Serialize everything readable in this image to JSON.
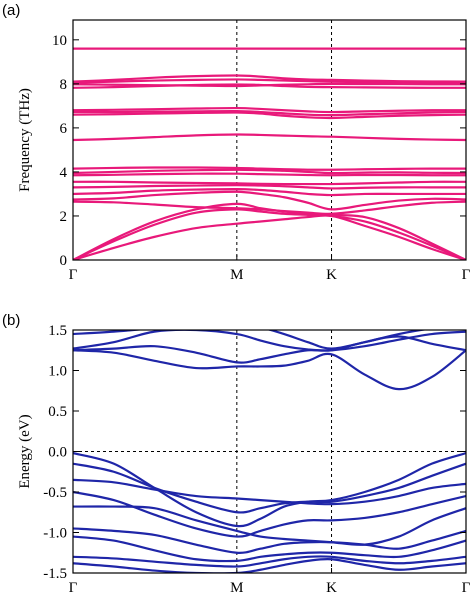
{
  "chart_data": [
    {
      "type": "line",
      "panel_label": "(a)",
      "title": "",
      "xlabel": "",
      "ylabel": "Frequency (THz)",
      "ylim": [
        0,
        10.9
      ],
      "yticks": [
        0,
        2,
        4,
        6,
        8,
        10
      ],
      "ytick_labels": [
        "0",
        "2",
        "4",
        "6",
        "8",
        "10"
      ],
      "xlim": [
        0,
        4.15
      ],
      "kpoints": [
        {
          "label": "Γ",
          "x": 0
        },
        {
          "label": "M",
          "x": 1.73
        },
        {
          "label": "K",
          "x": 2.73
        },
        {
          "label": "Γ",
          "x": 4.15
        }
      ],
      "hlines": [],
      "color": "#e8197a",
      "x": [
        0,
        0.43,
        0.86,
        1.3,
        1.73,
        1.98,
        2.23,
        2.48,
        2.73,
        3.08,
        3.44,
        3.79,
        4.15
      ],
      "series": [
        {
          "values": [
            0,
            0.55,
            1.05,
            1.45,
            1.65,
            1.75,
            1.85,
            1.95,
            2.0,
            1.55,
            1.05,
            0.5,
            0
          ]
        },
        {
          "values": [
            0,
            0.85,
            1.6,
            2.15,
            2.3,
            2.2,
            2.1,
            2.05,
            2.0,
            1.75,
            1.25,
            0.65,
            0
          ]
        },
        {
          "values": [
            0,
            0.95,
            1.75,
            2.3,
            2.55,
            2.35,
            2.2,
            2.1,
            2.05,
            1.95,
            1.45,
            0.75,
            0
          ]
        },
        {
          "values": [
            2.65,
            2.62,
            2.52,
            2.4,
            2.35,
            2.3,
            2.22,
            2.15,
            2.1,
            2.25,
            2.45,
            2.6,
            2.65
          ]
        },
        {
          "values": [
            2.75,
            2.8,
            2.95,
            3.05,
            3.1,
            3.0,
            2.85,
            2.6,
            2.3,
            2.5,
            2.7,
            2.78,
            2.75
          ]
        },
        {
          "values": [
            3.0,
            3.05,
            3.15,
            3.2,
            3.22,
            3.18,
            3.1,
            3.0,
            2.95,
            3.0,
            3.0,
            3.0,
            3.0
          ]
        },
        {
          "values": [
            3.3,
            3.32,
            3.36,
            3.38,
            3.4,
            3.38,
            3.35,
            3.3,
            3.25,
            3.28,
            3.3,
            3.3,
            3.3
          ]
        },
        {
          "values": [
            3.55,
            3.55,
            3.52,
            3.5,
            3.48,
            3.46,
            3.45,
            3.45,
            3.45,
            3.48,
            3.52,
            3.55,
            3.55
          ]
        },
        {
          "values": [
            3.85,
            3.87,
            3.9,
            3.92,
            3.92,
            3.9,
            3.88,
            3.86,
            3.85,
            3.86,
            3.86,
            3.85,
            3.85
          ]
        },
        {
          "values": [
            3.95,
            4.0,
            4.05,
            4.08,
            4.1,
            4.08,
            4.05,
            4.0,
            3.95,
            3.97,
            3.98,
            3.96,
            3.95
          ]
        },
        {
          "values": [
            4.15,
            4.18,
            4.2,
            4.2,
            4.18,
            4.15,
            4.12,
            4.1,
            4.1,
            4.12,
            4.14,
            4.15,
            4.15
          ]
        },
        {
          "values": [
            5.45,
            5.5,
            5.58,
            5.66,
            5.7,
            5.68,
            5.65,
            5.62,
            5.6,
            5.55,
            5.5,
            5.47,
            5.45
          ]
        },
        {
          "values": [
            6.6,
            6.62,
            6.65,
            6.68,
            6.7,
            6.65,
            6.55,
            6.48,
            6.45,
            6.5,
            6.55,
            6.58,
            6.6
          ]
        },
        {
          "values": [
            6.72,
            6.72,
            6.74,
            6.75,
            6.76,
            6.72,
            6.66,
            6.6,
            6.58,
            6.62,
            6.66,
            6.7,
            6.72
          ]
        },
        {
          "values": [
            6.8,
            6.82,
            6.85,
            6.88,
            6.9,
            6.86,
            6.8,
            6.75,
            6.72,
            6.75,
            6.78,
            6.8,
            6.8
          ]
        },
        {
          "values": [
            7.82,
            7.85,
            7.9,
            7.95,
            7.97,
            7.95,
            7.9,
            7.86,
            7.85,
            7.84,
            7.83,
            7.82,
            7.82
          ]
        },
        {
          "values": [
            7.98,
            7.96,
            7.94,
            7.92,
            7.9,
            7.93,
            7.96,
            7.98,
            8.0,
            7.99,
            7.99,
            7.98,
            7.98
          ]
        },
        {
          "values": [
            8.05,
            8.1,
            8.15,
            8.18,
            8.2,
            8.18,
            8.15,
            8.12,
            8.1,
            8.08,
            8.07,
            8.06,
            8.05
          ]
        },
        {
          "values": [
            8.1,
            8.18,
            8.28,
            8.35,
            8.38,
            8.33,
            8.25,
            8.2,
            8.18,
            8.15,
            8.12,
            8.11,
            8.1
          ]
        },
        {
          "values": [
            9.6,
            9.6,
            9.6,
            9.6,
            9.6,
            9.6,
            9.6,
            9.6,
            9.6,
            9.6,
            9.6,
            9.6,
            9.6
          ]
        }
      ]
    },
    {
      "type": "line",
      "panel_label": "(b)",
      "title": "",
      "xlabel": "",
      "ylabel": "Energy (eV)",
      "ylim": [
        -1.5,
        1.5
      ],
      "yticks": [
        -1.5,
        -1.0,
        -0.5,
        0.0,
        0.5,
        1.0,
        1.5
      ],
      "ytick_labels": [
        "-1.5",
        "-1.0",
        "-0.5",
        "0.0",
        "0.5",
        "1.0",
        "1.5"
      ],
      "xlim": [
        0,
        4.15
      ],
      "kpoints": [
        {
          "label": "Γ",
          "x": 0
        },
        {
          "label": "M",
          "x": 1.73
        },
        {
          "label": "K",
          "x": 2.73
        },
        {
          "label": "Γ",
          "x": 4.15
        }
      ],
      "hlines": [
        0
      ],
      "color": "#1f26a8",
      "x": [
        0,
        0.43,
        0.86,
        1.3,
        1.73,
        1.98,
        2.23,
        2.48,
        2.73,
        3.08,
        3.44,
        3.79,
        4.15
      ],
      "series": [
        {
          "values": [
            1.25,
            1.22,
            1.12,
            1.03,
            1.05,
            1.05,
            1.06,
            1.12,
            1.2,
            0.95,
            0.77,
            0.92,
            1.25
          ]
        },
        {
          "values": [
            1.25,
            1.27,
            1.3,
            1.22,
            1.1,
            1.14,
            1.2,
            1.25,
            1.25,
            1.35,
            1.42,
            1.33,
            1.25
          ]
        },
        {
          "values": [
            1.27,
            1.35,
            1.48,
            1.5,
            1.45,
            1.37,
            1.3,
            1.26,
            1.25,
            1.3,
            1.38,
            1.45,
            1.48
          ]
        },
        {
          "values": [
            1.45,
            1.48,
            1.52,
            1.54,
            1.55,
            1.53,
            1.45,
            1.35,
            1.27,
            1.35,
            1.45,
            1.52,
            1.55
          ]
        },
        {
          "values": [
            -0.02,
            -0.15,
            -0.45,
            -0.75,
            -0.92,
            -0.83,
            -0.68,
            -0.62,
            -0.6,
            -0.5,
            -0.35,
            -0.15,
            -0.02
          ]
        },
        {
          "values": [
            -0.15,
            -0.25,
            -0.45,
            -0.62,
            -0.75,
            -0.7,
            -0.64,
            -0.62,
            -0.62,
            -0.55,
            -0.45,
            -0.3,
            -0.15
          ]
        },
        {
          "values": [
            -0.35,
            -0.38,
            -0.47,
            -0.55,
            -0.58,
            -0.6,
            -0.62,
            -0.64,
            -0.65,
            -0.62,
            -0.55,
            -0.45,
            -0.4
          ]
        },
        {
          "values": [
            -0.5,
            -0.6,
            -0.78,
            -0.95,
            -1.05,
            -0.98,
            -0.9,
            -0.85,
            -0.85,
            -0.82,
            -0.75,
            -0.65,
            -0.55
          ]
        },
        {
          "values": [
            -0.68,
            -0.68,
            -0.7,
            -0.85,
            -0.98,
            -1.05,
            -1.08,
            -1.1,
            -1.12,
            -1.15,
            -1.05,
            -0.85,
            -0.7
          ]
        },
        {
          "values": [
            -0.95,
            -0.98,
            -1.03,
            -1.15,
            -1.25,
            -1.2,
            -1.14,
            -1.12,
            -1.12,
            -1.15,
            -1.2,
            -1.1,
            -0.98
          ]
        },
        {
          "values": [
            -1.05,
            -1.1,
            -1.22,
            -1.33,
            -1.35,
            -1.3,
            -1.27,
            -1.25,
            -1.25,
            -1.28,
            -1.3,
            -1.22,
            -1.1
          ]
        },
        {
          "values": [
            -1.3,
            -1.32,
            -1.36,
            -1.4,
            -1.42,
            -1.38,
            -1.33,
            -1.3,
            -1.3,
            -1.35,
            -1.38,
            -1.35,
            -1.3
          ]
        },
        {
          "values": [
            -1.38,
            -1.42,
            -1.47,
            -1.5,
            -1.5,
            -1.46,
            -1.4,
            -1.35,
            -1.33,
            -1.4,
            -1.46,
            -1.42,
            -1.38
          ]
        }
      ]
    }
  ]
}
